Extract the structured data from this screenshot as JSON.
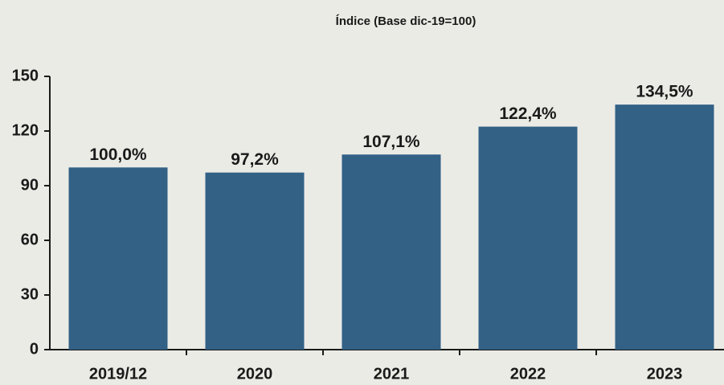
{
  "chart_data": {
    "type": "bar",
    "title": "Índice (Base dic-19=100)",
    "categories": [
      "2019/12",
      "2020",
      "2021",
      "2022",
      "2023"
    ],
    "values": [
      100.0,
      97.2,
      107.1,
      122.4,
      134.5
    ],
    "value_labels": [
      "100,0%",
      "97,2%",
      "107,1%",
      "122,4%",
      "134,5%"
    ],
    "color": "#336186",
    "ylim": [
      0,
      150
    ],
    "yticks": [
      0,
      30,
      60,
      90,
      120,
      150
    ],
    "grid": false
  }
}
